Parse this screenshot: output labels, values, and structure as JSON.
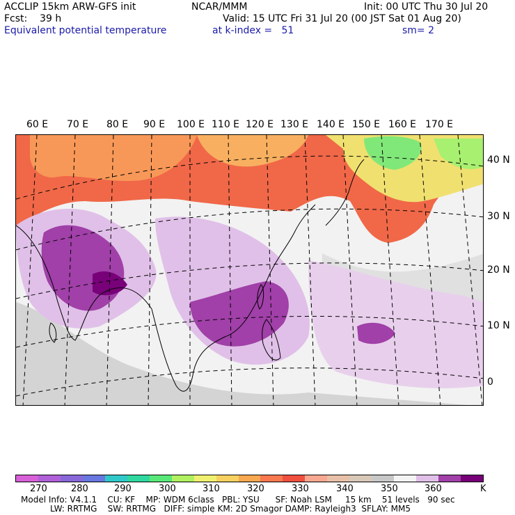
{
  "header": {
    "line1_left": "ACCLIP 15km ARW-GFS init",
    "line1_center": "NCAR/MMM",
    "line1_right": "Init: 00 UTC Thu 30 Jul 20",
    "line2_left": "Fcst:    39 h",
    "line2_right": "Valid: 15 UTC Fri 31 Jul 20 (00 JST Sat 01 Aug 20)",
    "line3_left": "Equivalent potential temperature",
    "line3_center": "at k-index =   51",
    "line3_right": "sm= 2"
  },
  "longitude_labels": [
    "60 E",
    "70 E",
    "80 E",
    "90 E",
    "100 E",
    "110 E",
    "120 E",
    "130 E",
    "140 E",
    "150 E",
    "160 E",
    "170 E"
  ],
  "latitude_labels": [
    "40 N",
    "30 N",
    "20 N",
    "10 N",
    "0"
  ],
  "colorbar": {
    "colors": [
      "#d860d8",
      "#b060d8",
      "#8868d8",
      "#6878e0",
      "#30c8c8",
      "#30d8a0",
      "#58e878",
      "#b0f060",
      "#f0f070",
      "#f8d060",
      "#f8a850",
      "#f87850",
      "#f05040",
      "#f8a890",
      "#e8c0a8",
      "#d8c8b8",
      "#c8c8c8",
      "#f4f4f4",
      "#e0c0e8",
      "#a040a8",
      "#780078"
    ],
    "labels": [
      "270",
      "280",
      "290",
      "300",
      "310",
      "320",
      "330",
      "340",
      "350",
      "360",
      "K"
    ]
  },
  "footer": {
    "line1": "Model Info: V4.1.1    CU: KF    MP: WDM 6class   PBL: YSU      SF: Noah LSM     15 km    51 levels   90 sec",
    "line2": "LW: RRTMG    SW: RRTMG   DIFF: simple KM: 2D Smagor DAMP: Rayleigh3  SFLAY: MM5"
  }
}
